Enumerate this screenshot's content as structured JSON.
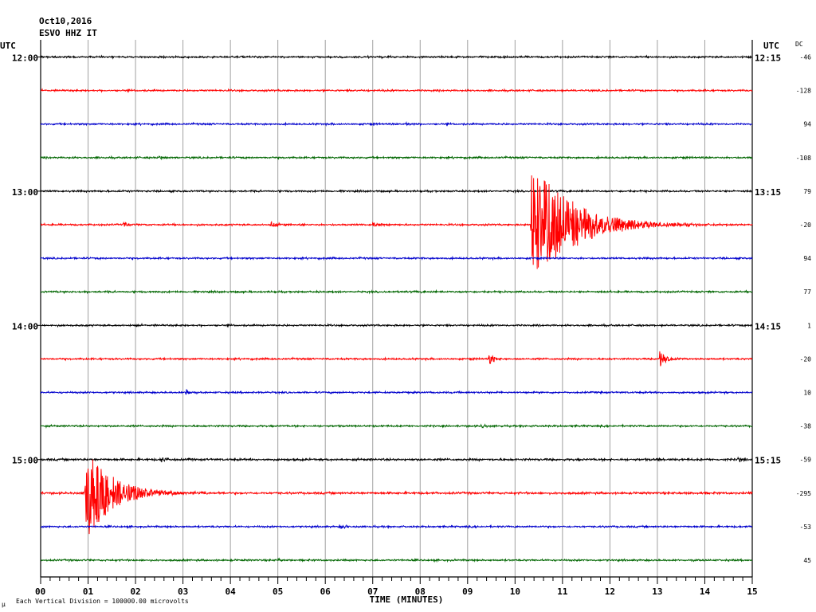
{
  "header": {
    "date": "Oct10,2016",
    "station": "ESVO HHZ IT",
    "left_tz": "UTC",
    "right_tz": "UTC",
    "dc_label": "DC"
  },
  "footer": {
    "scale_note": "Each Vertical Division = 100000.00 microvolts",
    "corner_mark": "μ"
  },
  "colors": {
    "trace_cycle": [
      "#000000",
      "#ff0000",
      "#0000cc",
      "#006600"
    ],
    "grid": "#a0a0a0",
    "frame": "#000000"
  },
  "chart_data": {
    "type": "line",
    "xlabel": "TIME (MINUTES)",
    "xlim": [
      0,
      15
    ],
    "x_ticks": [
      "00",
      "01",
      "02",
      "03",
      "04",
      "05",
      "06",
      "07",
      "08",
      "09",
      "10",
      "11",
      "12",
      "13",
      "14",
      "15"
    ],
    "rows": [
      {
        "left": "12:00",
        "right": "12:15",
        "dc": "-46",
        "noise": 1.0,
        "events": []
      },
      {
        "left": "",
        "right": "",
        "dc": "-128",
        "noise": 1.0,
        "events": []
      },
      {
        "left": "",
        "right": "",
        "dc": "94",
        "noise": 1.0,
        "events": [
          {
            "t": 7.7,
            "amp": 4,
            "dur": 0.1
          }
        ]
      },
      {
        "left": "",
        "right": "",
        "dc": "-108",
        "noise": 1.0,
        "events": [
          {
            "t": 2.5,
            "amp": 3,
            "dur": 0.2
          }
        ]
      },
      {
        "left": "13:00",
        "right": "13:15",
        "dc": "79",
        "noise": 1.0,
        "events": []
      },
      {
        "left": "",
        "right": "",
        "dc": "-20",
        "noise": 1.0,
        "events": [
          {
            "t": 1.75,
            "amp": 4,
            "dur": 0.2
          },
          {
            "t": 4.85,
            "amp": 4,
            "dur": 0.3
          },
          {
            "t": 7.0,
            "amp": 3,
            "dur": 0.3
          },
          {
            "t": 10.35,
            "amp": 85,
            "dur": 1.8
          }
        ]
      },
      {
        "left": "",
        "right": "",
        "dc": "94",
        "noise": 1.0,
        "events": []
      },
      {
        "left": "",
        "right": "",
        "dc": "77",
        "noise": 1.0,
        "events": []
      },
      {
        "left": "14:00",
        "right": "14:15",
        "dc": "1",
        "noise": 1.0,
        "events": []
      },
      {
        "left": "",
        "right": "",
        "dc": "-20",
        "noise": 1.0,
        "events": [
          {
            "t": 9.45,
            "amp": 8,
            "dur": 0.25
          },
          {
            "t": 13.05,
            "amp": 10,
            "dur": 0.3
          }
        ]
      },
      {
        "left": "",
        "right": "",
        "dc": "10",
        "noise": 1.0,
        "events": [
          {
            "t": 3.05,
            "amp": 4,
            "dur": 0.2
          }
        ]
      },
      {
        "left": "",
        "right": "",
        "dc": "-38",
        "noise": 1.0,
        "events": [
          {
            "t": 9.3,
            "amp": 3,
            "dur": 0.2
          }
        ]
      },
      {
        "left": "15:00",
        "right": "15:15",
        "dc": "-59",
        "noise": 1.2,
        "events": [
          {
            "t": 2.55,
            "amp": 3,
            "dur": 0.3
          },
          {
            "t": 13.0,
            "amp": 3,
            "dur": 0.2
          },
          {
            "t": 14.7,
            "amp": 3,
            "dur": 0.3
          }
        ]
      },
      {
        "left": "",
        "right": "",
        "dc": "-295",
        "noise": 1.2,
        "events": [
          {
            "t": 0.95,
            "amp": 60,
            "dur": 1.2
          }
        ]
      },
      {
        "left": "",
        "right": "",
        "dc": "-53",
        "noise": 1.0,
        "events": [
          {
            "t": 6.3,
            "amp": 3,
            "dur": 0.3
          }
        ]
      },
      {
        "left": "",
        "right": "",
        "dc": "45",
        "noise": 1.0,
        "events": [
          {
            "t": 5.0,
            "amp": 3,
            "dur": 0.2
          }
        ]
      }
    ]
  }
}
